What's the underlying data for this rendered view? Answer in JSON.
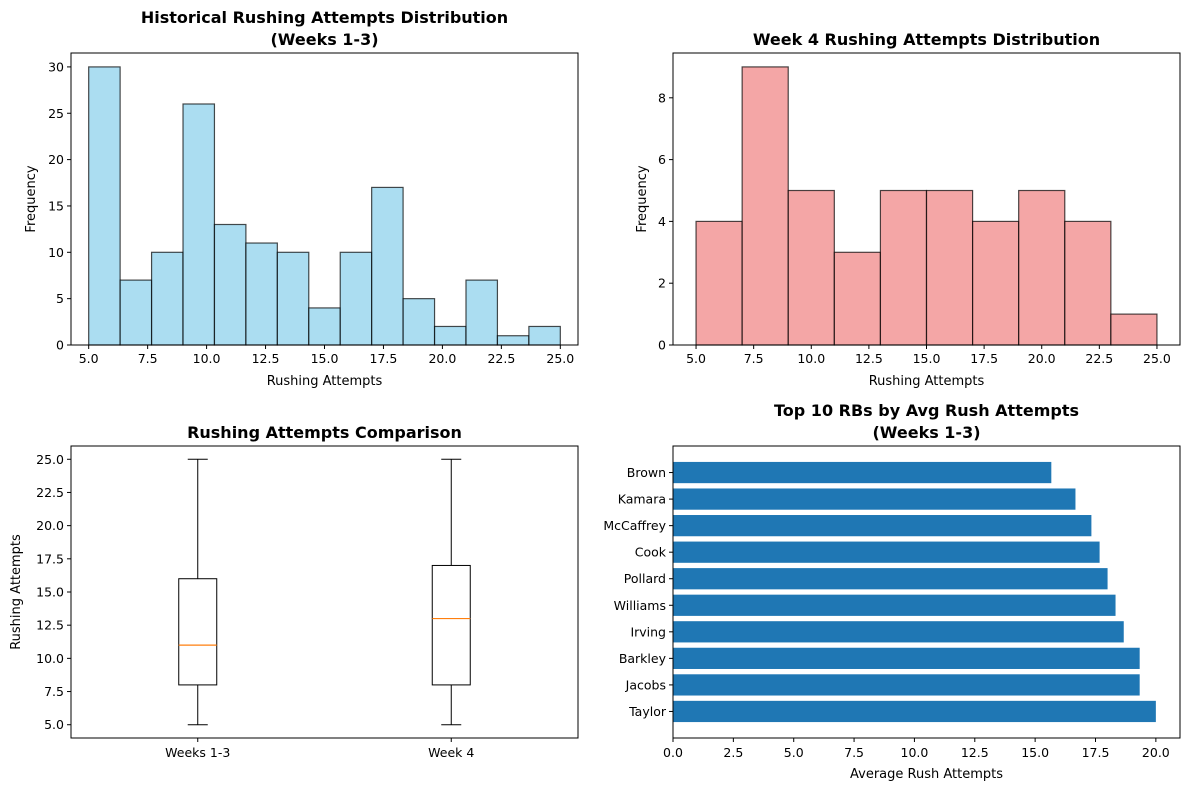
{
  "chart_data": [
    {
      "id": "hist_weeks_1_3",
      "type": "bar",
      "subtype": "histogram",
      "title_lines": [
        "Historical Rushing Attempts Distribution",
        "(Weeks 1-3)"
      ],
      "xlabel": "Rushing Attempts",
      "ylabel": "Frequency",
      "bin_edges": [
        5.0,
        6.333,
        7.667,
        9.0,
        10.333,
        11.667,
        13.0,
        14.333,
        15.667,
        17.0,
        18.333,
        19.667,
        21.0,
        22.333,
        23.667,
        25.0
      ],
      "values": [
        30,
        7,
        10,
        26,
        13,
        11,
        10,
        4,
        10,
        17,
        5,
        2,
        7,
        1,
        2
      ],
      "xlim": [
        4.25,
        25.75
      ],
      "ylim": [
        0,
        31.5
      ],
      "xticks": [
        5.0,
        7.5,
        10.0,
        12.5,
        15.0,
        17.5,
        20.0,
        22.5,
        25.0
      ],
      "xtick_labels": [
        "5.0",
        "7.5",
        "10.0",
        "12.5",
        "15.0",
        "17.5",
        "20.0",
        "22.5",
        "25.0"
      ],
      "yticks": [
        0,
        5,
        10,
        15,
        20,
        25,
        30
      ],
      "ytick_labels": [
        "0",
        "5",
        "10",
        "15",
        "20",
        "25",
        "30"
      ],
      "color": "#87ceeb",
      "alpha": 0.7,
      "edge_color": "#000000"
    },
    {
      "id": "hist_week_4",
      "type": "bar",
      "subtype": "histogram",
      "title_lines": [
        "Week 4 Rushing Attempts Distribution"
      ],
      "xlabel": "Rushing Attempts",
      "ylabel": "Frequency",
      "bin_edges": [
        5,
        7,
        9,
        11,
        13,
        15,
        17,
        19,
        21,
        23,
        25
      ],
      "values": [
        4,
        9,
        5,
        3,
        5,
        5,
        4,
        5,
        4,
        1
      ],
      "xlim": [
        4.0,
        26.0
      ],
      "ylim": [
        0,
        9.45
      ],
      "xticks": [
        5.0,
        7.5,
        10.0,
        12.5,
        15.0,
        17.5,
        20.0,
        22.5,
        25.0
      ],
      "xtick_labels": [
        "5.0",
        "7.5",
        "10.0",
        "12.5",
        "15.0",
        "17.5",
        "20.0",
        "22.5",
        "25.0"
      ],
      "yticks": [
        0,
        2,
        4,
        6,
        8
      ],
      "ytick_labels": [
        "0",
        "2",
        "4",
        "6",
        "8"
      ],
      "color": "#f08080",
      "alpha": 0.7,
      "edge_color": "#000000"
    },
    {
      "id": "boxplot_comparison",
      "type": "box",
      "title_lines": [
        "Rushing Attempts Comparison"
      ],
      "xlabel": "",
      "ylabel": "Rushing Attempts",
      "categories": [
        "Weeks 1-3",
        "Week 4"
      ],
      "series": [
        {
          "name": "Weeks 1-3",
          "min": 5,
          "q1": 8,
          "median": 11,
          "q3": 16,
          "max": 25
        },
        {
          "name": "Week 4",
          "min": 5,
          "q1": 8,
          "median": 13,
          "q3": 17,
          "max": 25
        }
      ],
      "ylim": [
        4.0,
        26.0
      ],
      "yticks": [
        5.0,
        7.5,
        10.0,
        12.5,
        15.0,
        17.5,
        20.0,
        22.5,
        25.0
      ],
      "ytick_labels": [
        "5.0",
        "7.5",
        "10.0",
        "12.5",
        "15.0",
        "17.5",
        "20.0",
        "22.5",
        "25.0"
      ],
      "median_color": "#ff7f0e"
    },
    {
      "id": "top10_barh",
      "type": "bar",
      "orientation": "horizontal",
      "title_lines": [
        "Top 10 RBs by Avg Rush Attempts",
        "(Weeks 1-3)"
      ],
      "xlabel": "Average Rush Attempts",
      "ylabel": "",
      "categories": [
        "Taylor",
        "Jacobs",
        "Barkley",
        "Irving",
        "Williams",
        "Pollard",
        "Cook",
        "McCaffrey",
        "Kamara",
        "Brown"
      ],
      "values": [
        20.0,
        19.33,
        19.33,
        18.67,
        18.33,
        18.0,
        17.67,
        17.33,
        16.67,
        15.67
      ],
      "xlim": [
        0,
        21.0
      ],
      "xticks": [
        0.0,
        2.5,
        5.0,
        7.5,
        10.0,
        12.5,
        15.0,
        17.5,
        20.0
      ],
      "xtick_labels": [
        "0.0",
        "2.5",
        "5.0",
        "7.5",
        "10.0",
        "12.5",
        "15.0",
        "17.5",
        "20.0"
      ],
      "color": "#1f77b4"
    }
  ]
}
